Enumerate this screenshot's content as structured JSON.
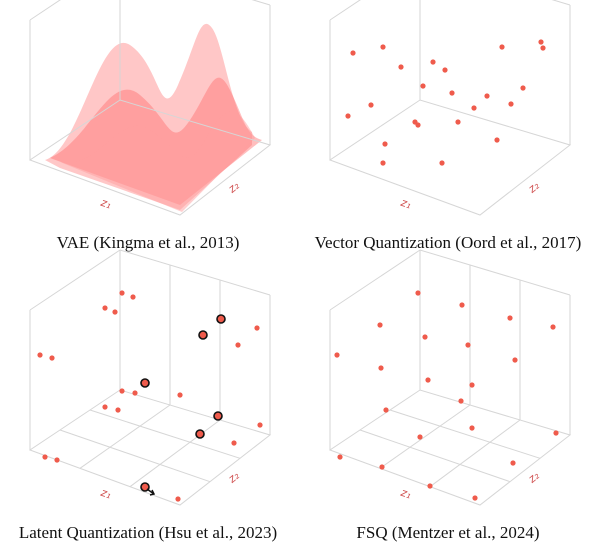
{
  "panels": [
    {
      "caption": "VAE (Kingma et al., 2013)",
      "x_label": "z₁",
      "y_label": "z₂"
    },
    {
      "caption": "Vector Quantization (Oord et al., 2017)",
      "x_label": "z₁",
      "y_label": "z₂"
    },
    {
      "caption": "Latent Quantization (Hsu et al., 2023)",
      "x_label": "z₁",
      "y_label": "z₂"
    },
    {
      "caption": "FSQ (Mentzer et al., 2024)",
      "x_label": "z₁",
      "y_label": "z₂"
    }
  ]
}
